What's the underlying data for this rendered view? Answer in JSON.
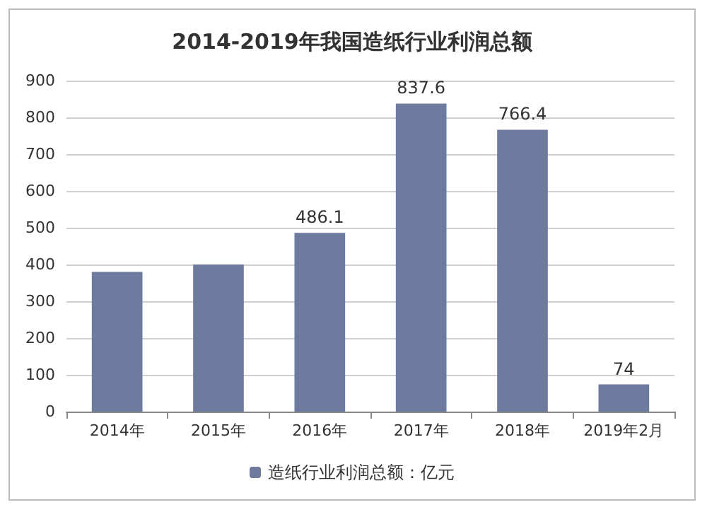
{
  "chart_data": {
    "type": "bar",
    "title": "2014-2019年我国造纸行业利润总额",
    "categories": [
      "2014年",
      "2015年",
      "2016年",
      "2017年",
      "2018年",
      "2019年2月"
    ],
    "series": [
      {
        "name": "造纸行业利润总额：亿元",
        "color": "#6f7a9f",
        "values": [
          380,
          400,
          486.1,
          837.6,
          766.4,
          74
        ],
        "value_labels": [
          null,
          null,
          "486.1",
          "837.6",
          "766.4",
          "74"
        ]
      }
    ],
    "ylim": [
      0,
      900
    ],
    "yticks": [
      0,
      100,
      200,
      300,
      400,
      500,
      600,
      700,
      800,
      900
    ],
    "grid": "y",
    "legend": "bottom"
  }
}
